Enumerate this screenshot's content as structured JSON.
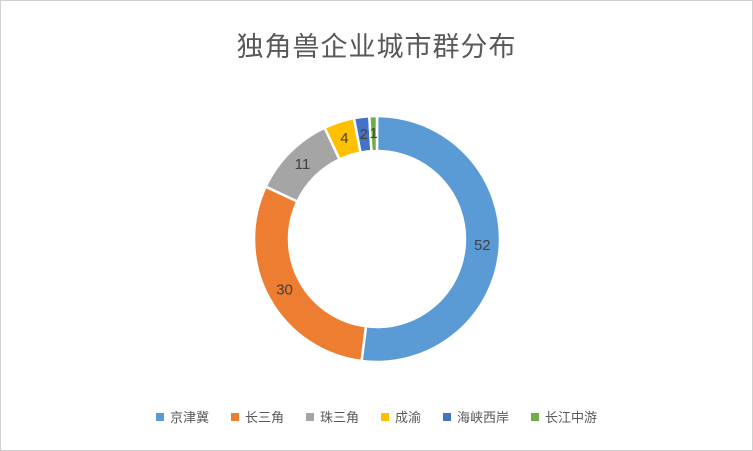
{
  "frame": {
    "background": "#ffffff",
    "border_color": "#cfcfcf"
  },
  "chart_data": {
    "type": "pie",
    "subtype": "donut",
    "title": "独角兽企业城市群分布",
    "categories": [
      "京津冀",
      "长三角",
      "珠三角",
      "成渝",
      "海峡西岸",
      "长江中游"
    ],
    "values": [
      52,
      30,
      11,
      4,
      2,
      1
    ],
    "data_labels": [
      "52",
      "30",
      "11",
      "4",
      "2",
      "1"
    ],
    "colors": [
      "#5B9BD5",
      "#ED7D31",
      "#A5A5A5",
      "#FFC000",
      "#4472C4",
      "#70AD47"
    ],
    "total": 100,
    "start_angle_deg": 0,
    "direction": "clockwise",
    "donut_hole_ratio": 0.715,
    "slice_border_color": "#ffffff",
    "title_color": "#595959",
    "label_color": "#404040",
    "legend_text_color": "#595959",
    "legend_position": "bottom",
    "gridlines": false
  }
}
